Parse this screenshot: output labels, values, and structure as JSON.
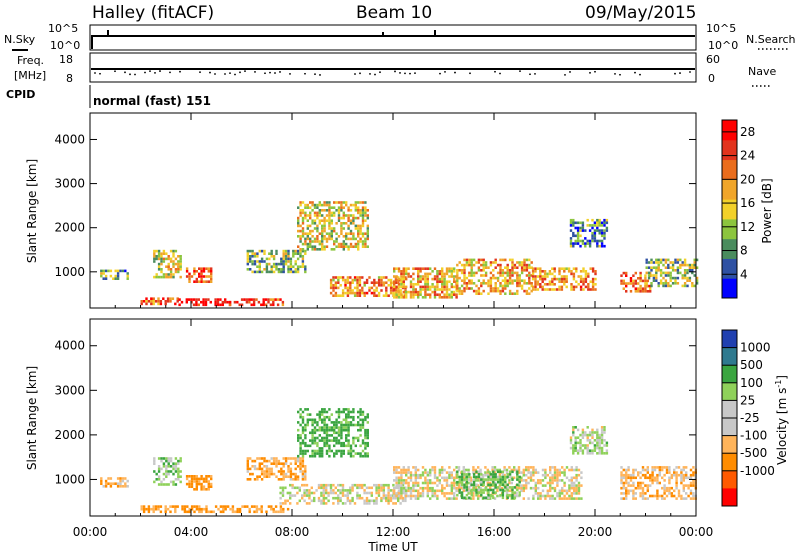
{
  "header": {
    "station": "Halley (fitACF)",
    "beam": "Beam 10",
    "date": "09/May/2015"
  },
  "strips": {
    "nsky_label": "N.Sky",
    "nsky_ticks": [
      "10^5",
      "10^0"
    ],
    "nsearch_label": "N.Search",
    "nsearch_ticks": [
      "10^5",
      "10^0"
    ],
    "freq_label": "Freq.",
    "freq_unit": "[MHz]",
    "freq_ticks": [
      "18",
      "8"
    ],
    "nave_label": "Nave",
    "nave_ticks": [
      "60",
      "0"
    ],
    "cpid_label": "CPID",
    "cpid_value": "normal (fast) 151"
  },
  "colors": {
    "power_scale": [
      "#0000ff",
      "#2f51a3",
      "#4a8c5e",
      "#8cc53e",
      "#f2d12a",
      "#f0a52a",
      "#ea6d1d",
      "#e2331d",
      "#ff0000"
    ],
    "velocity_scale": [
      "#ff0000",
      "#ff5a00",
      "#ff8c00",
      "#ffb45a",
      "#c8c8c8",
      "#c8c8c8",
      "#8fd15a",
      "#3aa540",
      "#2f7a8f",
      "#2040b0"
    ]
  },
  "chart_data": [
    {
      "type": "heatmap",
      "title": "Power",
      "xlabel": "Time UT",
      "ylabel": "Slant Range [km]",
      "x_ticks": [
        "00:00",
        "04:00",
        "08:00",
        "12:00",
        "16:00",
        "20:00",
        "00:00"
      ],
      "xlim": [
        0,
        24
      ],
      "ylim": [
        180,
        4600
      ],
      "y_ticks": [
        1000,
        2000,
        3000,
        4000
      ],
      "colorbar_label": "Power [dB]",
      "colorbar_ticks": [
        4,
        8,
        12,
        16,
        20,
        24,
        28
      ],
      "colorbar_range": [
        0,
        30
      ],
      "echo_regions": [
        {
          "t": [
            0.4,
            1.5
          ],
          "r": [
            850,
            1050
          ],
          "v": 10
        },
        {
          "t": [
            2.0,
            3.5
          ],
          "r": [
            250,
            420
          ],
          "v": 22
        },
        {
          "t": [
            3.5,
            5.5
          ],
          "r": [
            250,
            400
          ],
          "v": 29
        },
        {
          "t": [
            5.5,
            7.8
          ],
          "r": [
            250,
            400
          ],
          "v": 25
        },
        {
          "t": [
            3.8,
            4.8
          ],
          "r": [
            750,
            1100
          ],
          "v": 24
        },
        {
          "t": [
            2.5,
            3.6
          ],
          "r": [
            900,
            1500
          ],
          "v": 14
        },
        {
          "t": [
            6.2,
            8.5
          ],
          "r": [
            1000,
            1500
          ],
          "v": 11
        },
        {
          "t": [
            8.2,
            11.0
          ],
          "r": [
            1500,
            2600
          ],
          "v": 15
        },
        {
          "t": [
            9.5,
            12.5
          ],
          "r": [
            450,
            900
          ],
          "v": 20
        },
        {
          "t": [
            12.0,
            14.5
          ],
          "r": [
            450,
            1100
          ],
          "v": 18
        },
        {
          "t": [
            14.5,
            17.5
          ],
          "r": [
            500,
            1300
          ],
          "v": 18
        },
        {
          "t": [
            17.5,
            20.0
          ],
          "r": [
            600,
            1100
          ],
          "v": 20
        },
        {
          "t": [
            19.0,
            20.5
          ],
          "r": [
            1600,
            2200
          ],
          "v": 8
        },
        {
          "t": [
            21.0,
            22.2
          ],
          "r": [
            550,
            1000
          ],
          "v": 22
        },
        {
          "t": [
            22.0,
            24.0
          ],
          "r": [
            700,
            1300
          ],
          "v": 12
        }
      ]
    },
    {
      "type": "heatmap",
      "title": "Velocity",
      "xlabel": "Time UT",
      "ylabel": "Slant Range [km]",
      "x_ticks": [
        "00:00",
        "04:00",
        "08:00",
        "12:00",
        "16:00",
        "20:00",
        "00:00"
      ],
      "xlim": [
        0,
        24
      ],
      "ylim": [
        180,
        4600
      ],
      "y_ticks": [
        1000,
        2000,
        3000,
        4000
      ],
      "colorbar_label": "Velocity [m s",
      "colorbar_label_sup": "-1",
      "colorbar_label_end": "]",
      "colorbar_ticks": [
        "1000",
        "500",
        "100",
        "25",
        "-25",
        "-100",
        "-500",
        "-1000"
      ],
      "echo_regions": [
        {
          "t": [
            0.4,
            1.5
          ],
          "r": [
            850,
            1050
          ],
          "v": -80
        },
        {
          "t": [
            2.0,
            7.8
          ],
          "r": [
            250,
            420
          ],
          "v": -120
        },
        {
          "t": [
            3.8,
            4.8
          ],
          "r": [
            750,
            1100
          ],
          "v": -150
        },
        {
          "t": [
            2.5,
            3.6
          ],
          "r": [
            900,
            1500
          ],
          "v": 60
        },
        {
          "t": [
            6.2,
            8.5
          ],
          "r": [
            1000,
            1500
          ],
          "v": -90
        },
        {
          "t": [
            8.2,
            11.0
          ],
          "r": [
            1500,
            2600
          ],
          "v": 150
        },
        {
          "t": [
            7.5,
            12.5
          ],
          "r": [
            450,
            900
          ],
          "v": 0
        },
        {
          "t": [
            12.0,
            19.5
          ],
          "r": [
            550,
            1300
          ],
          "v": -20
        },
        {
          "t": [
            14.5,
            17.0
          ],
          "r": [
            600,
            1200
          ],
          "v": 90
        },
        {
          "t": [
            19.0,
            20.5
          ],
          "r": [
            1600,
            2200
          ],
          "v": 40
        },
        {
          "t": [
            21.0,
            24.0
          ],
          "r": [
            550,
            1300
          ],
          "v": -60
        }
      ]
    }
  ]
}
